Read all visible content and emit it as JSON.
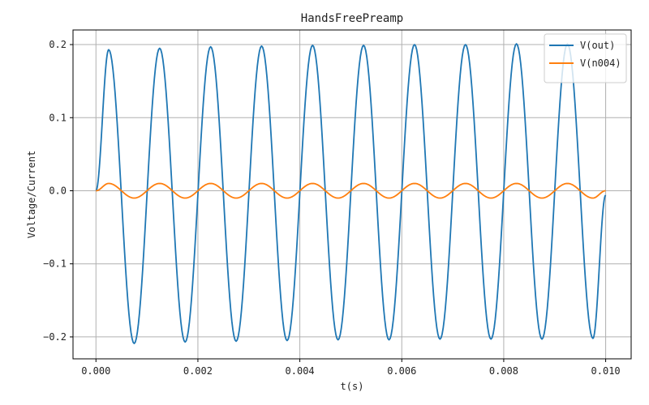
{
  "chart_data": {
    "type": "line",
    "title": "HandsFreePreamp",
    "xlabel": "t(s)",
    "ylabel": "Voltage/Current",
    "xlim": [
      -0.00045,
      0.0105
    ],
    "ylim": [
      -0.23,
      0.22
    ],
    "grid": true,
    "legend_position": "top-right",
    "xticks": [
      0.0,
      0.002,
      0.004,
      0.006,
      0.008,
      0.01
    ],
    "xtick_labels": [
      "0.000",
      "0.002",
      "0.004",
      "0.006",
      "0.008",
      "0.010"
    ],
    "yticks": [
      -0.2,
      -0.1,
      0.0,
      0.1,
      0.2
    ],
    "ytick_labels": [
      "−0.2",
      "−0.1",
      "0.0",
      "0.1",
      "0.2"
    ],
    "series": [
      {
        "name": "V(out)",
        "color": "#1f77b4",
        "description": "1 kHz sine, amplitude growing from ~0.193 to ~0.203, slight negative offset",
        "x": [
          0.0,
          0.00025,
          0.00075,
          0.00125,
          0.00175,
          0.00225,
          0.00275,
          0.00325,
          0.00375,
          0.00425,
          0.00475,
          0.00525,
          0.00575,
          0.00625,
          0.00675,
          0.00725,
          0.00775,
          0.00825,
          0.00875,
          0.00925,
          0.00975,
          0.01
        ],
        "y": [
          0.0,
          0.193,
          -0.209,
          0.195,
          -0.207,
          0.197,
          -0.206,
          0.198,
          -0.205,
          0.199,
          -0.204,
          0.199,
          -0.204,
          0.2,
          -0.203,
          0.2,
          -0.203,
          0.201,
          -0.203,
          0.201,
          -0.202,
          -0.006
        ]
      },
      {
        "name": "V(n004)",
        "color": "#ff7f0e",
        "description": "1 kHz sine, amplitude ~0.01",
        "x": [
          0.0,
          0.00025,
          0.00075,
          0.00125,
          0.00175,
          0.00225,
          0.00275,
          0.00325,
          0.00375,
          0.00425,
          0.00475,
          0.00525,
          0.00575,
          0.00625,
          0.00675,
          0.00725,
          0.00775,
          0.00825,
          0.00875,
          0.00925,
          0.00975,
          0.01
        ],
        "y": [
          0.0,
          0.01,
          -0.01,
          0.01,
          -0.01,
          0.01,
          -0.01,
          0.01,
          -0.01,
          0.01,
          -0.01,
          0.01,
          -0.01,
          0.01,
          -0.01,
          0.01,
          -0.01,
          0.01,
          -0.01,
          0.01,
          -0.01,
          0.0
        ]
      }
    ]
  }
}
